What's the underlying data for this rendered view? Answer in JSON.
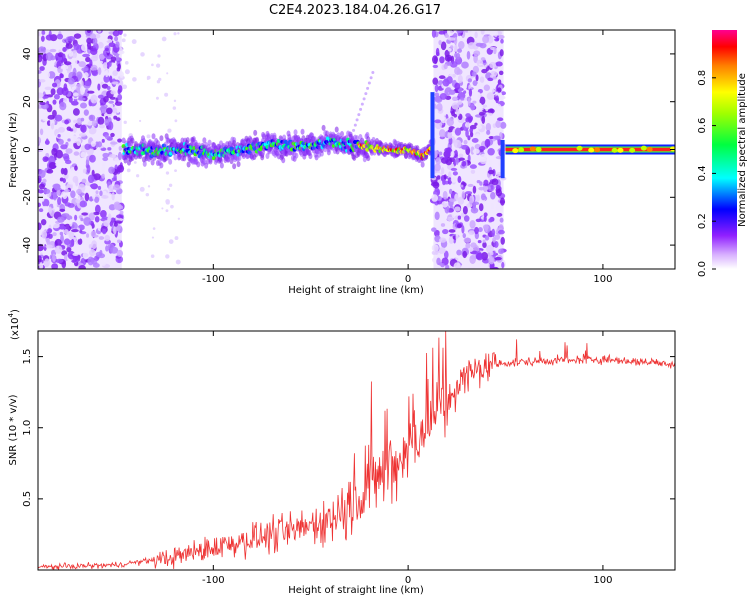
{
  "title": "C2E4.2023.184.04.26.G17",
  "chart_data": [
    {
      "type": "heatmap",
      "name": "spectrogram",
      "xlabel": "Height of straight line (km)",
      "ylabel": "Frequency (Hz)",
      "xlim": [
        -190,
        137
      ],
      "ylim": [
        -50,
        50
      ],
      "xticks": [
        -100,
        0,
        100
      ],
      "xtick_labels": [
        "-100",
        "0",
        "100"
      ],
      "yticks": [
        -40,
        -20,
        0,
        20,
        40
      ],
      "ytick_labels": [
        "-40",
        "-20",
        "0",
        "20",
        "40"
      ],
      "noise_bands_km": [
        [
          -190,
          -147
        ],
        [
          13,
          49
        ]
      ],
      "ridge": [
        [
          -146,
          0
        ],
        [
          -130,
          -1
        ],
        [
          -115,
          0
        ],
        [
          -100,
          -2
        ],
        [
          -85,
          0
        ],
        [
          -70,
          2
        ],
        [
          -55,
          1
        ],
        [
          -40,
          3
        ],
        [
          -30,
          2
        ],
        [
          -20,
          1
        ],
        [
          -10,
          0
        ],
        [
          0,
          0
        ],
        [
          8,
          -3
        ],
        [
          12,
          1
        ]
      ],
      "colorbar": {
        "label": "Normalized spectral amplitude",
        "range": [
          0,
          1
        ],
        "ticks": [
          0.0,
          0.2,
          0.4,
          0.6,
          0.8
        ],
        "tick_labels": [
          "0.0",
          "0.2",
          "0.4",
          "0.6",
          "0.8"
        ]
      }
    },
    {
      "type": "line",
      "name": "snr",
      "xlabel": "Height of straight line (km)",
      "ylabel": "SNR (10 * v/v)",
      "scale_label": "(x10",
      "scale_exp": "4",
      "scale_close": ")",
      "xlim": [
        -190,
        137
      ],
      "ylim": [
        0,
        16800
      ],
      "xticks": [
        -100,
        0,
        100
      ],
      "xtick_labels": [
        "-100",
        "0",
        "100"
      ],
      "yticks": [
        5000,
        10000,
        15000
      ],
      "ytick_labels": [
        "0.5",
        "1.0",
        "1.5"
      ],
      "color": "#ee3333",
      "trend": [
        [
          -190,
          200
        ],
        [
          -150,
          350
        ],
        [
          -120,
          900
        ],
        [
          -100,
          1600
        ],
        [
          -80,
          2200
        ],
        [
          -60,
          2700
        ],
        [
          -40,
          3600
        ],
        [
          -25,
          5000
        ],
        [
          -15,
          6400
        ],
        [
          -5,
          7600
        ],
        [
          0,
          8600
        ],
        [
          10,
          10300
        ],
        [
          20,
          12000
        ],
        [
          30,
          13600
        ],
        [
          40,
          14400
        ],
        [
          60,
          14650
        ],
        [
          100,
          14800
        ],
        [
          137,
          14500
        ]
      ]
    }
  ],
  "colors": {
    "colorbar_stops": [
      "#ffffff",
      "#c080ff",
      "#8000ff",
      "#0000ff",
      "#00ffff",
      "#00ff00",
      "#ffff00",
      "#ff8000",
      "#ff0000",
      "#ff0080"
    ]
  }
}
